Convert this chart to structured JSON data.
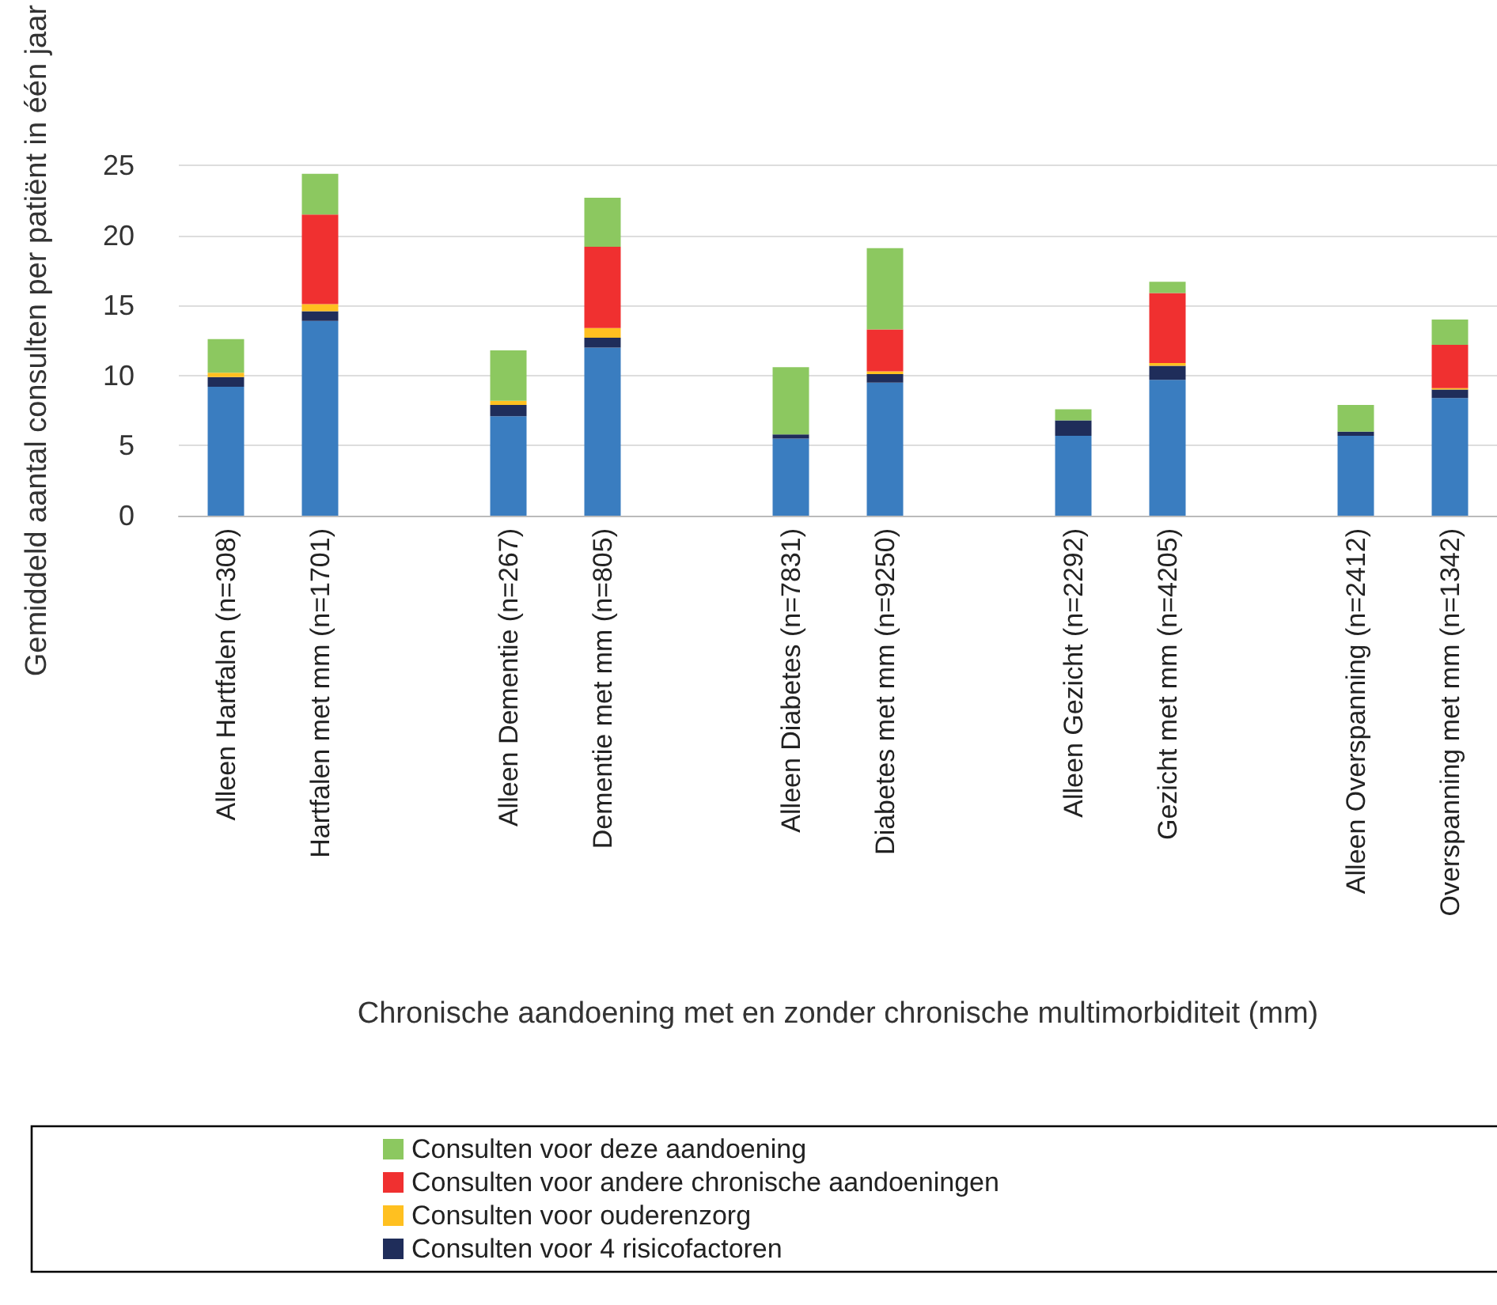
{
  "chart_data": {
    "type": "bar",
    "stacked": true,
    "xlabel": "Chronische aandoening met en zonder chronische multimorbiditeit (mm)",
    "ylabel": "Gemiddeld aantal consulten per patiënt in één jaar",
    "categories": [
      "Alleen Hartfalen (n=308)",
      "Hartfalen met mm (n=1701)",
      null,
      "Alleen Dementie (n=267)",
      "Dementie met mm (n=805)",
      null,
      "Alleen Diabetes (n=7831)",
      "Diabetes met mm (n=9250)",
      null,
      "Alleen Gezicht (n=2292)",
      "Gezicht met mm (n=4205)",
      null,
      "Alleen Overspanning (n=2412)",
      "Overspanning met mm (n=1342)"
    ],
    "series": [
      {
        "color": "#3a7dc0",
        "values": [
          9.2,
          13.9,
          null,
          7.1,
          12.0,
          null,
          5.5,
          9.5,
          null,
          5.7,
          9.7,
          null,
          5.7,
          8.4
        ]
      },
      {
        "name": "Consulten voor 4 risicofactoren",
        "color": "#1f2d5a",
        "values": [
          0.7,
          0.7,
          null,
          0.8,
          0.7,
          null,
          0.3,
          0.6,
          null,
          1.1,
          1.0,
          null,
          0.3,
          0.6
        ]
      },
      {
        "name": "Consulten voor ouderenzorg",
        "color": "#ffc020",
        "values": [
          0.3,
          0.5,
          null,
          0.3,
          0.7,
          null,
          0,
          0.2,
          null,
          0,
          0.2,
          null,
          0,
          0.1
        ]
      },
      {
        "name": "Consulten voor andere chronische aandoeningen",
        "color": "#f03030",
        "values": [
          0,
          6.4,
          null,
          0,
          5.8,
          null,
          0,
          3.0,
          null,
          0,
          5.0,
          null,
          0,
          3.1
        ]
      },
      {
        "name": "Consulten voor deze aandoening",
        "color": "#8cc860",
        "values": [
          2.4,
          2.9,
          null,
          3.6,
          3.5,
          null,
          4.8,
          5.8,
          null,
          0.8,
          0.8,
          null,
          1.9,
          1.8
        ]
      }
    ],
    "ylim": [
      0,
      25
    ],
    "yticks": [
      0,
      5,
      10,
      15,
      20,
      25
    ],
    "grid": "y",
    "legend": "bottom"
  }
}
